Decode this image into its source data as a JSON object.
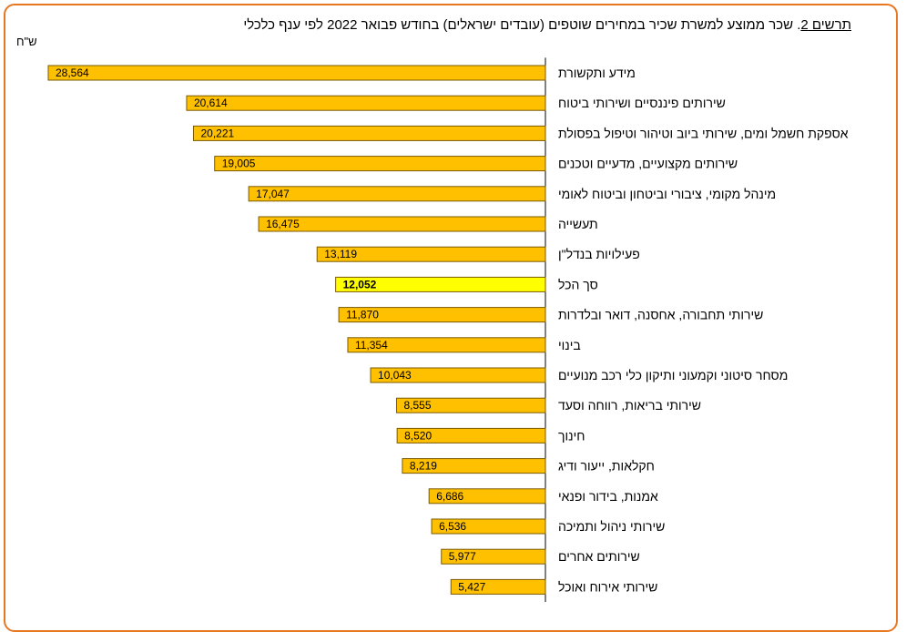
{
  "chart_data": {
    "type": "bar",
    "orientation": "horizontal",
    "title_prefix": "תרשים 2",
    "title_text": ". שכר ממוצע למשרת שכיר במחירים שוטפים (עובדים ישראלים) בחודש פבואר 2022 לפי ענף כלכלי",
    "unit": "ש\"ח",
    "categories": [
      "מידע ותקשורת",
      "שירותים פיננסיים ושירותי ביטוח",
      "אספקת חשמל ומים, שירותי ביוב וטיהור וטיפול בפסולת",
      "שירותים מקצועיים, מדעיים וטכנים",
      "מינהל מקומי, ציבורי וביטחון וביטוח לאומי",
      "תעשייה",
      "פעילויות בנדל\"ן",
      "סך הכל",
      "שירותי תחבורה, אחסנה, דואר ובלדרות",
      "בינוי",
      "מסחר סיטוני וקמעוני ותיקון כלי רכב מנועיים",
      "שירותי בריאות, רווחה וסעד",
      "חינוך",
      "חקלאות, ייעור ודיג",
      "אמנות, בידור ופנאי",
      "שירותי ניהול ותמיכה",
      "שירותים אחרים",
      "שירותי אירוח ואוכל"
    ],
    "values": [
      28564,
      20614,
      20221,
      19005,
      17047,
      16475,
      13119,
      12052,
      11870,
      11354,
      10043,
      8555,
      8520,
      8219,
      6686,
      6536,
      5977,
      5427
    ],
    "value_labels": [
      "28,564",
      "20,614",
      "20,221",
      "19,005",
      "17,047",
      "16,475",
      "13,119",
      "12,052",
      "11,870",
      "11,354",
      "10,043",
      "8,555",
      "8,520",
      "8,219",
      "6,686",
      "6,536",
      "5,977",
      "5,427"
    ],
    "highlight_category": "סך הכל",
    "colors": {
      "bar": "#ffc000",
      "highlight": "#ffff00",
      "frame": "#e87722"
    },
    "grid": false,
    "legend": "none"
  }
}
